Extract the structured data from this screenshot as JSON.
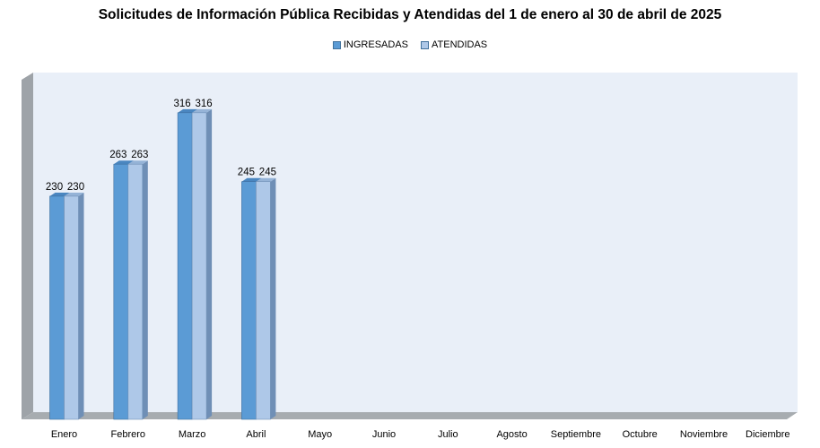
{
  "chart_data": {
    "type": "bar",
    "title": "Solicitudes de Información Pública Recibidas y Atendidas del 1 de enero al 30 de abril de 2025",
    "categories": [
      "Enero",
      "Febrero",
      "Marzo",
      "Abril",
      "Mayo",
      "Junio",
      "Julio",
      "Agosto",
      "Septiembre",
      "Octubre",
      "Noviembre",
      "Diciembre"
    ],
    "series": [
      {
        "name": "INGRESADAS",
        "values": [
          230,
          263,
          316,
          245,
          null,
          null,
          null,
          null,
          null,
          null,
          null,
          null
        ],
        "color": "#5b9bd5"
      },
      {
        "name": "ATENDIDAS",
        "values": [
          230,
          263,
          316,
          245,
          null,
          null,
          null,
          null,
          null,
          null,
          null,
          null
        ],
        "color": "#aec8e8"
      }
    ],
    "ylim": [
      0,
      350
    ],
    "legend_position": "top",
    "grid": false,
    "three_d": true
  }
}
